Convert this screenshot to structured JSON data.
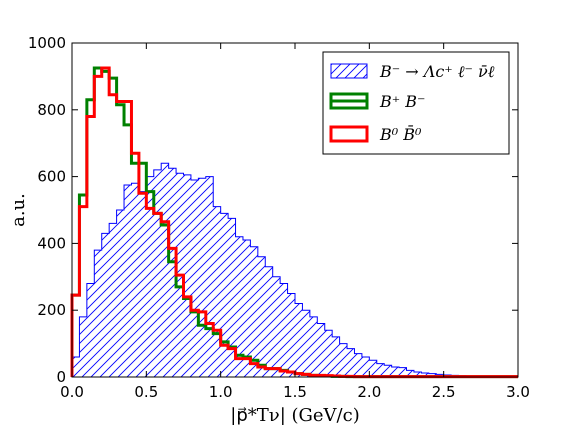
{
  "chart_data": {
    "type": "histogram",
    "title": "",
    "xlabel": "|p⃗*Tν|   (GeV/c)",
    "ylabel": "a.u.",
    "xlim": [
      0,
      3
    ],
    "ylim": [
      0,
      1000
    ],
    "x_ticks": [
      "0.0",
      "0.5",
      "1.0",
      "1.5",
      "2.0",
      "2.5",
      "3.0"
    ],
    "y_ticks": [
      "0",
      "200",
      "400",
      "600",
      "800",
      "1000"
    ],
    "legend_position": "top-right",
    "bin_width": 0.05,
    "series": [
      {
        "name": "B⁻ → Λc⁺ ℓ⁻ ν̄ℓ",
        "style": "hatched",
        "color": "#0000ff",
        "x_start": 0.0,
        "values": [
          60,
          180,
          280,
          380,
          430,
          460,
          500,
          575,
          580,
          555,
          600,
          620,
          640,
          625,
          610,
          605,
          590,
          595,
          600,
          510,
          490,
          475,
          420,
          410,
          390,
          360,
          330,
          300,
          280,
          250,
          220,
          200,
          180,
          160,
          140,
          120,
          100,
          85,
          70,
          60,
          50,
          40,
          35,
          30,
          28,
          20,
          15,
          12,
          10,
          8,
          6,
          5,
          4,
          3,
          2,
          2,
          1,
          1,
          1,
          1
        ]
      },
      {
        "name": "B⁺ B⁻",
        "style": "step",
        "color": "#008000",
        "x_start": 0.0,
        "values": [
          245,
          545,
          830,
          925,
          915,
          895,
          815,
          755,
          640,
          640,
          555,
          490,
          455,
          345,
          270,
          235,
          195,
          155,
          145,
          130,
          105,
          90,
          65,
          60,
          50,
          35,
          25,
          25,
          20,
          15,
          10,
          8,
          5,
          4,
          3,
          2,
          2,
          1,
          1,
          1,
          1,
          1,
          1,
          1,
          1,
          1,
          1,
          1,
          1,
          1,
          1,
          1,
          1,
          1,
          1,
          1,
          1,
          1,
          1,
          1
        ]
      },
      {
        "name": "B⁰ B̄⁰",
        "style": "step",
        "color": "#ff0000",
        "x_start": 0.0,
        "values": [
          245,
          510,
          780,
          900,
          925,
          845,
          825,
          825,
          670,
          550,
          505,
          490,
          465,
          385,
          305,
          240,
          200,
          195,
          160,
          140,
          95,
          85,
          55,
          55,
          40,
          30,
          25,
          25,
          18,
          15,
          10,
          8,
          5,
          5,
          4,
          3,
          2,
          2,
          1,
          1,
          1,
          1,
          1,
          1,
          1,
          1,
          1,
          1,
          1,
          1,
          1,
          1,
          1,
          1,
          1,
          1,
          1,
          1,
          1,
          1
        ]
      }
    ]
  }
}
